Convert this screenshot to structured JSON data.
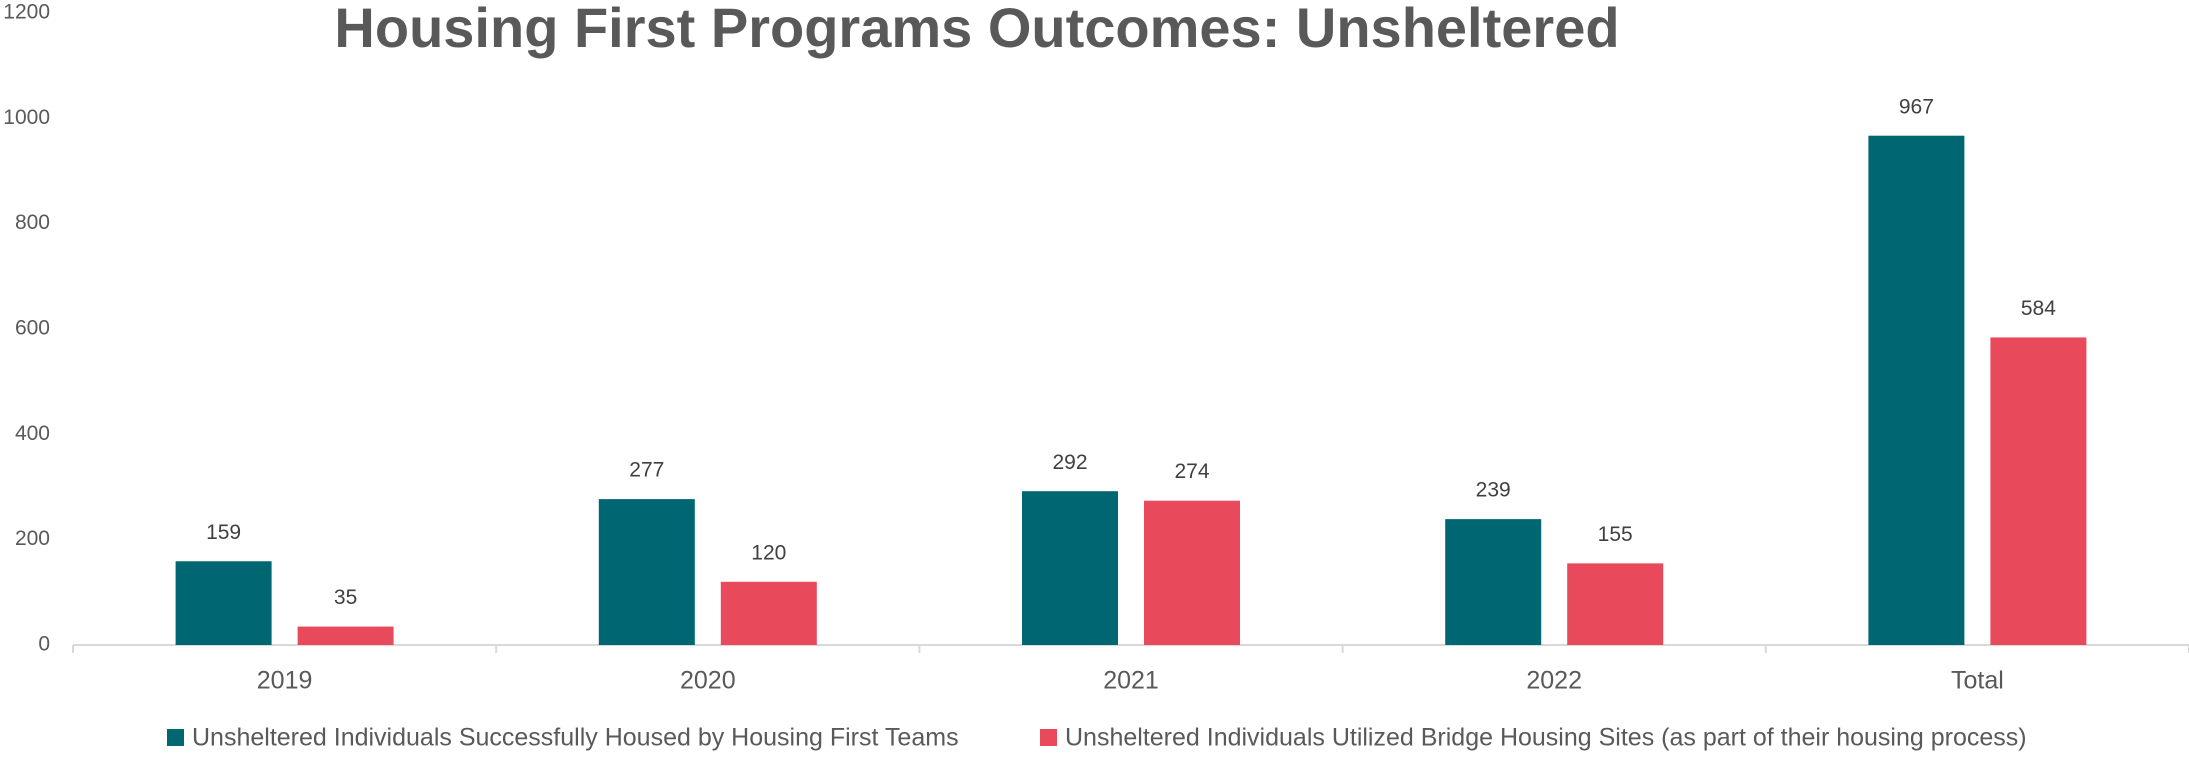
{
  "chart_data": {
    "type": "bar",
    "title": "Housing First Programs Outcomes: Unsheltered",
    "categories": [
      "2019",
      "2020",
      "2021",
      "2022",
      "Total"
    ],
    "series": [
      {
        "name": "Unsheltered Individuals Successfully Housed by Housing First Teams",
        "color": "#006672",
        "values": [
          159,
          277,
          292,
          239,
          967
        ]
      },
      {
        "name": "Unsheltered Individuals Utilized Bridge Housing Sites (as part of their housing process)",
        "color": "#e84a5b",
        "values": [
          35,
          120,
          274,
          155,
          584
        ]
      }
    ],
    "ylim": [
      0,
      1200
    ],
    "yticks": [
      0,
      200,
      400,
      600,
      800,
      1000,
      1200
    ],
    "grid": false,
    "legend": "bottom"
  }
}
